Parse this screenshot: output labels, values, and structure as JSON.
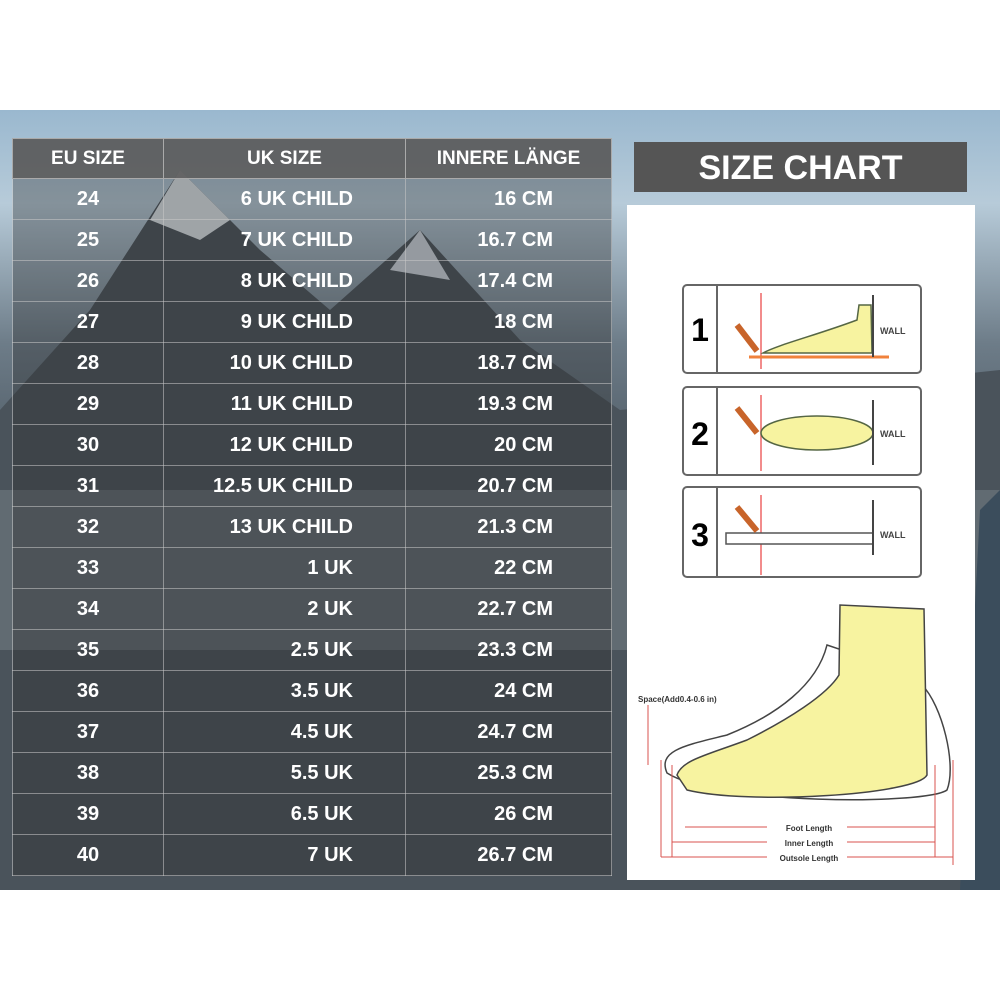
{
  "title": "SIZE CHART",
  "table": {
    "headers": [
      "EU SIZE",
      "UK SIZE",
      "INNERE LÄNGE"
    ],
    "rows": [
      [
        "24",
        "6 UK CHILD",
        "16 CM"
      ],
      [
        "25",
        "7 UK CHILD",
        "16.7 CM"
      ],
      [
        "26",
        "8 UK CHILD",
        "17.4 CM"
      ],
      [
        "27",
        "9 UK CHILD",
        "18 CM"
      ],
      [
        "28",
        "10 UK CHILD",
        "18.7 CM"
      ],
      [
        "29",
        "11 UK CHILD",
        "19.3 CM"
      ],
      [
        "30",
        "12 UK CHILD",
        "20 CM"
      ],
      [
        "31",
        "12.5 UK CHILD",
        "20.7 CM"
      ],
      [
        "32",
        "13 UK CHILD",
        "21.3 CM"
      ],
      [
        "33",
        "1 UK",
        "22 CM"
      ],
      [
        "34",
        "2 UK",
        "22.7 CM"
      ],
      [
        "35",
        "2.5 UK",
        "23.3 CM"
      ],
      [
        "36",
        "3.5 UK",
        "24 CM"
      ],
      [
        "37",
        "4.5 UK",
        "24.7 CM"
      ],
      [
        "38",
        "5.5 UK",
        "25.3 CM"
      ],
      [
        "39",
        "6.5 UK",
        "26 CM"
      ],
      [
        "40",
        "7 UK",
        "26.7 CM"
      ]
    ]
  },
  "steps": [
    {
      "number": "1",
      "wall": "WALL"
    },
    {
      "number": "2",
      "wall": "WALL"
    },
    {
      "number": "3",
      "wall": "WALL"
    }
  ],
  "diagram": {
    "space": "Space(Add0.4-0.6 in)",
    "foot_length": "Foot Length",
    "inner_length": "Inner Length",
    "outsole_length": "Outsole Length"
  },
  "colors": {
    "foot": "#f7f3a0",
    "measure": "#d9534f",
    "pencil": "#c8642a",
    "header_bg": "#555555"
  }
}
